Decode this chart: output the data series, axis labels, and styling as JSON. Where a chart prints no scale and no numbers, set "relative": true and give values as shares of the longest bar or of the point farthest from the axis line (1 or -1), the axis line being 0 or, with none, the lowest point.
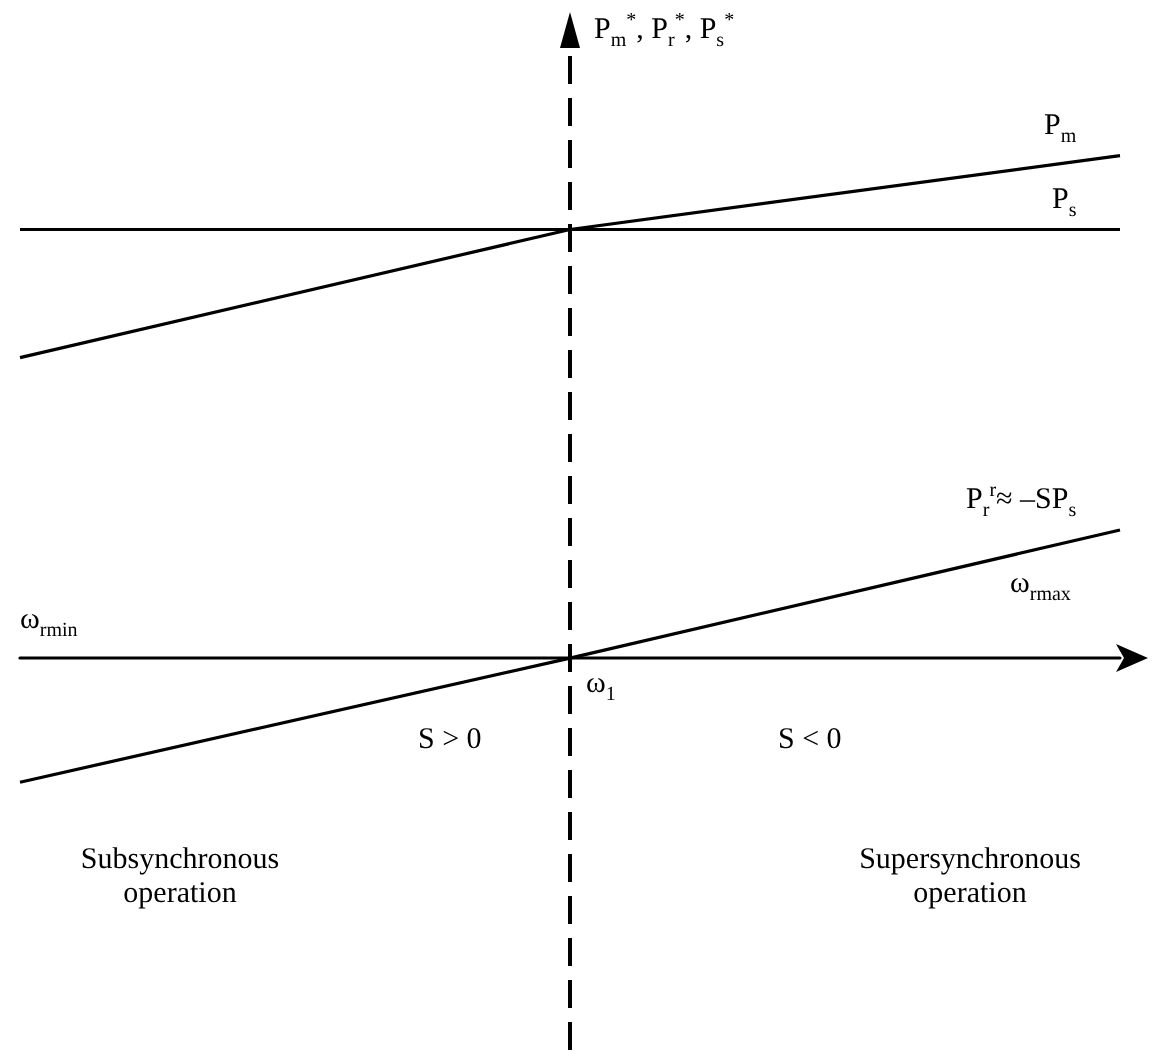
{
  "chart_data": {
    "type": "line",
    "relative": true,
    "ylabel": "P$_{m}$$^{*}$, P$_{r}$$^{*}$, P$_{s}$$^{*}$",
    "categories": [
      null,
      null,
      null
    ],
    "series": [
      {
        "name": "P$_{m}$",
        "color": "#000000",
        "values": [
          0.598,
          0.853,
          1
        ]
      },
      {
        "name": "P$_{s}$",
        "color": "#000000",
        "values": [
          0.853,
          0.853,
          0.853
        ]
      },
      {
        "name": "P$_{r}$$^{r}$≈ –SP$_{s}$",
        "color": "#000000",
        "values": [
          -0.247,
          0,
          0.255
        ]
      }
    ],
    "marker": "none",
    "line_style": "solid",
    "annotations": [
      "ω$_{rmin}$",
      "ω$_{rmax}$",
      "ω$_{1}$",
      "S > 0",
      "S < 0",
      "Subsynchronous operation",
      "Supersynchronous operation"
    ]
  }
}
